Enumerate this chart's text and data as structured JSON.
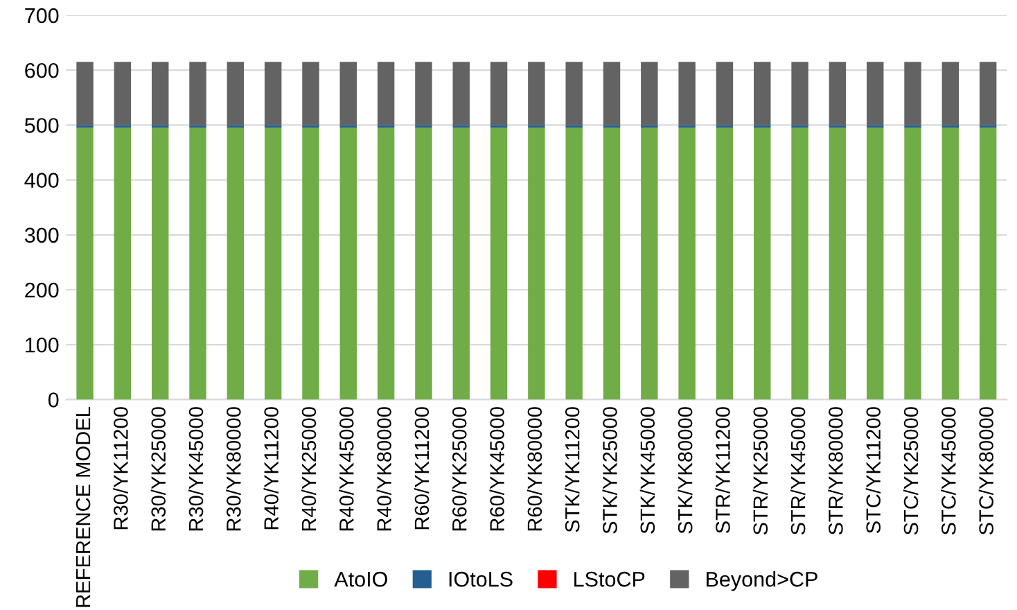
{
  "chart_data": {
    "type": "bar",
    "stacked": true,
    "categories": [
      "REFERENCE MODEL",
      "R30/YK11200",
      "R30/YK25000",
      "R30/YK45000",
      "R30/YK80000",
      "R40/YK11200",
      "R40/YK25000",
      "R40/YK45000",
      "R40/YK80000",
      "R60/YK11200",
      "R60/YK25000",
      "R60/YK45000",
      "R60/YK80000",
      "STK/YK11200",
      "STK/YK25000",
      "STK/YK45000",
      "STK/YK80000",
      "STR/YK11200",
      "STR/YK25000",
      "STR/YK45000",
      "STR/YK80000",
      "STC/YK11200",
      "STC/YK25000",
      "STC/YK45000",
      "STC/YK80000"
    ],
    "series": [
      {
        "name": "AtoIO",
        "color": "#70ad47",
        "values": [
          495,
          495,
          495,
          495,
          495,
          495,
          495,
          495,
          495,
          495,
          495,
          495,
          495,
          495,
          495,
          495,
          495,
          495,
          495,
          495,
          495,
          495,
          495,
          495,
          495
        ]
      },
      {
        "name": "IOtoLS",
        "color": "#255e91",
        "values": [
          5,
          5,
          5,
          5,
          5,
          5,
          5,
          5,
          5,
          5,
          5,
          5,
          5,
          5,
          5,
          5,
          5,
          5,
          5,
          5,
          5,
          5,
          5,
          5,
          5
        ]
      },
      {
        "name": "LStoCP",
        "color": "#ff0000",
        "values": [
          0,
          0,
          0,
          0,
          0,
          0,
          0,
          0,
          0,
          0,
          0,
          0,
          0,
          0,
          0,
          0,
          0,
          0,
          0,
          0,
          0,
          0,
          0,
          0,
          0
        ]
      },
      {
        "name": "Beyond>CP",
        "color": "#636363",
        "values": [
          115,
          115,
          115,
          115,
          115,
          115,
          115,
          115,
          115,
          115,
          115,
          115,
          115,
          115,
          115,
          115,
          115,
          115,
          115,
          115,
          115,
          115,
          115,
          115,
          115
        ]
      }
    ],
    "ylim": [
      0,
      700
    ],
    "yticks": [
      0,
      100,
      200,
      300,
      400,
      500,
      600,
      700
    ],
    "grid": "y",
    "legend": "bottom"
  }
}
